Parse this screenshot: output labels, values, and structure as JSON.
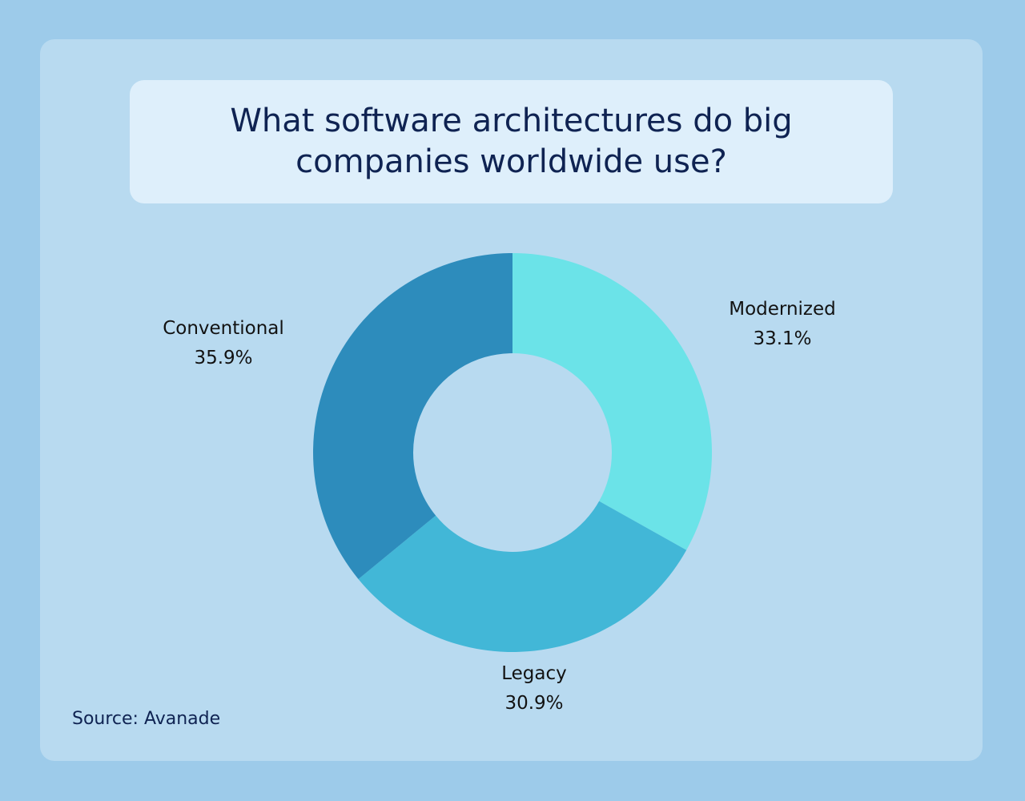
{
  "chart_data": {
    "type": "pie",
    "title": "What software architectures do big companies worldwide use?",
    "source": "Source: Avanade",
    "categories": [
      "Modernized",
      "Legacy",
      "Conventional"
    ],
    "values": [
      33.1,
      30.9,
      35.9
    ],
    "value_labels": [
      "33.1%",
      "30.9%",
      "35.9%"
    ],
    "colors": [
      "#6be3e8",
      "#42b7d7",
      "#2d8cbc"
    ],
    "donut": true
  }
}
